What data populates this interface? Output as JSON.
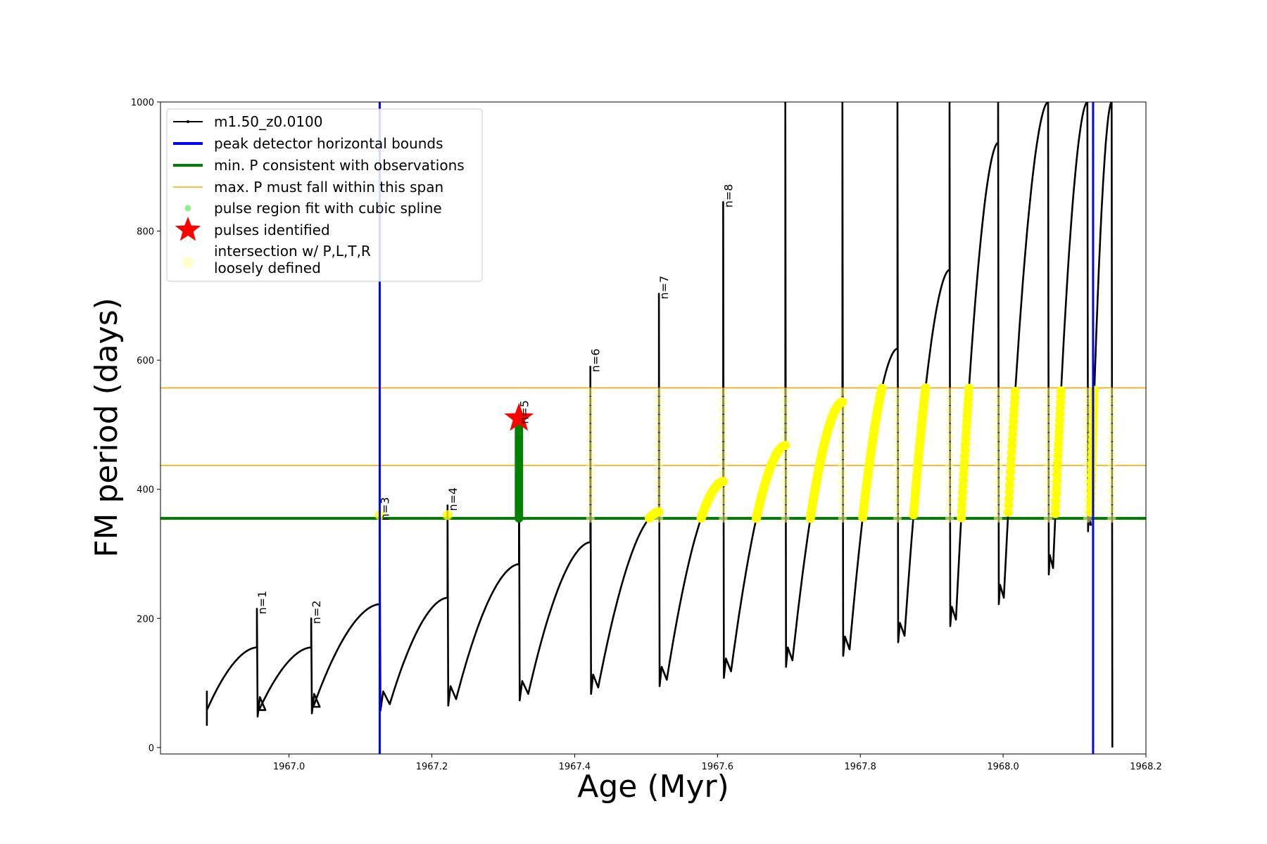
{
  "chart_data": {
    "type": "line",
    "title": "",
    "xlabel": "Age (Myr)",
    "ylabel": "FM period (days)",
    "xlim": [
      1966.82,
      1968.2
    ],
    "ylim": [
      -10,
      1000
    ],
    "xticks": [
      1967.0,
      1967.2,
      1967.4,
      1967.6,
      1967.8,
      1968.0,
      1968.2
    ],
    "xtick_labels": [
      "1967.0",
      "1967.2",
      "1967.4",
      "1967.6",
      "1967.8",
      "1968.0",
      "1968.2"
    ],
    "yticks": [
      0,
      200,
      400,
      600,
      800,
      1000
    ],
    "ytick_labels": [
      "0",
      "200",
      "400",
      "600",
      "800",
      "1000"
    ],
    "legend_position": "top-left",
    "legend": [
      {
        "label": "m1.50_z0.0100",
        "marker": "line-dot",
        "color": "#000000"
      },
      {
        "label": "peak detector horizontal bounds",
        "marker": "line",
        "color": "#0000ff"
      },
      {
        "label": "min. P consistent with observations",
        "marker": "line",
        "color": "#008000"
      },
      {
        "label": "max. P must fall within this span",
        "marker": "thin-line",
        "color": "#ffa500"
      },
      {
        "label": "pulse region fit with cubic spline",
        "marker": "dot",
        "color": "#90ee90"
      },
      {
        "label": "pulses identified",
        "marker": "star",
        "color": "#ff0000"
      },
      {
        "label": "intersection w/ P,L,T,R",
        "label2": "loosely defined",
        "marker": "big-dot",
        "color": "#ffffcc"
      }
    ],
    "colors": {
      "track": "#000000",
      "bounds": "#0000ff",
      "min_p": "#008000",
      "max_p": "#ffa500",
      "spline": "#008000",
      "star": "#ff0000",
      "intersect": "#ffff00",
      "intersect_loose": "#ffff99"
    },
    "vertical_bounds": [
      1967.127,
      1968.126
    ],
    "min_period_line": 355,
    "max_period_span": [
      437,
      557
    ],
    "pulses": [
      {
        "label": "n=1",
        "x0": 1966.885,
        "x_pk": 1966.955,
        "y_start": 58,
        "y_end": 155,
        "y_spike": 215,
        "y_min": 58,
        "rec_dx": 0.012
      },
      {
        "label": "n=2",
        "x0": 1966.958,
        "x_pk": 1967.031,
        "y_start": 58,
        "y_end": 155,
        "y_spike": 200,
        "y_min": 63,
        "rec_dx": 0.012
      },
      {
        "label": "n=3",
        "x0": 1967.034,
        "x_pk": 1967.127,
        "y_start": 63,
        "y_end": 222,
        "y_spike": 360,
        "y_min": 67,
        "rec_dx": 0.014
      },
      {
        "label": "n=4",
        "x0": 1967.141,
        "x_pk": 1967.222,
        "y_start": 67,
        "y_end": 232,
        "y_spike": 375,
        "y_min": 75,
        "rec_dx": 0.012
      },
      {
        "label": "n=5",
        "x0": 1967.234,
        "x_pk": 1967.322,
        "y_start": 75,
        "y_end": 284,
        "y_spike": 510,
        "y_min": 83,
        "rec_dx": 0.013
      },
      {
        "label": "n=6",
        "x0": 1967.335,
        "x_pk": 1967.422,
        "y_start": 83,
        "y_end": 318,
        "y_spike": 590,
        "y_min": 93,
        "rec_dx": 0.011
      },
      {
        "label": "n=7",
        "x0": 1967.433,
        "x_pk": 1967.518,
        "y_start": 93,
        "y_end": 365,
        "y_spike": 703,
        "y_min": 105,
        "rec_dx": 0.011
      },
      {
        "label": "n=8",
        "x0": 1967.529,
        "x_pk": 1967.608,
        "y_start": 105,
        "y_end": 412,
        "y_spike": 845,
        "y_min": 118,
        "rec_dx": 0.011
      },
      {
        "label": "",
        "x0": 1967.619,
        "x_pk": 1967.695,
        "y_start": 118,
        "y_end": 468,
        "y_spike": 1000,
        "y_min": 135,
        "rec_dx": 0.01
      },
      {
        "label": "",
        "x0": 1967.705,
        "x_pk": 1967.775,
        "y_start": 135,
        "y_end": 535,
        "y_spike": 1000,
        "y_min": 152,
        "rec_dx": 0.01
      },
      {
        "label": "",
        "x0": 1967.785,
        "x_pk": 1967.852,
        "y_start": 152,
        "y_end": 618,
        "y_spike": 1000,
        "y_min": 173,
        "rec_dx": 0.01
      },
      {
        "label": "",
        "x0": 1967.862,
        "x_pk": 1967.925,
        "y_start": 173,
        "y_end": 740,
        "y_spike": 1000,
        "y_min": 198,
        "rec_dx": 0.009
      },
      {
        "label": "",
        "x0": 1967.934,
        "x_pk": 1967.993,
        "y_start": 198,
        "y_end": 937,
        "y_spike": 1000,
        "y_min": 232,
        "rec_dx": 0.008
      },
      {
        "label": "",
        "x0": 1968.001,
        "x_pk": 1968.063,
        "y_start": 232,
        "y_end": 1000,
        "y_spike": 1000,
        "y_min": 278,
        "rec_dx": 0.007
      },
      {
        "label": "",
        "x0": 1968.07,
        "x_pk": 1968.118,
        "y_start": 278,
        "y_end": 1000,
        "y_spike": 1000,
        "y_min": 345,
        "rec_dx": 0.005
      },
      {
        "label": "",
        "x0": 1968.122,
        "x_pk": 1968.152,
        "y_start": 345,
        "y_end": 1000,
        "y_spike": 1000,
        "y_min": 0,
        "rec_dx": 0.001
      }
    ],
    "start_point": {
      "x": 1966.885,
      "y_low": 35,
      "y_high": 88
    },
    "spline_fit": {
      "x": 1967.322,
      "y_range": [
        355,
        500
      ]
    },
    "pulse_identified": {
      "x": 1967.322,
      "y": 510
    }
  }
}
